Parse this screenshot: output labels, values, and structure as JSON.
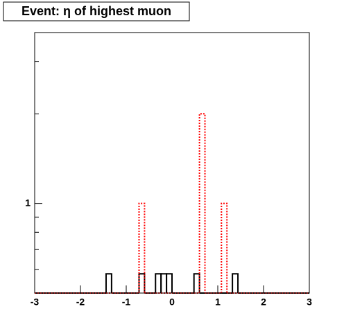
{
  "chart_data": {
    "type": "histogram",
    "title": "Event: η of highest muon",
    "bins": [
      -3,
      -2.88,
      -2.76,
      -2.64,
      -2.52,
      -2.4,
      -2.28,
      -2.16,
      -2.04,
      -1.92,
      -1.8,
      -1.68,
      -1.56,
      -1.44,
      -1.32,
      -1.2,
      -1.08,
      -0.96,
      -0.84,
      -0.72,
      -0.6,
      -0.48,
      -0.36,
      -0.24,
      -0.12,
      0,
      0.12,
      0.24,
      0.36,
      0.48,
      0.6,
      0.72,
      0.84,
      0.96,
      1.08,
      1.2,
      1.32,
      1.44,
      1.56,
      1.68,
      1.8,
      1.92,
      2.04,
      2.16,
      2.28,
      2.4,
      2.52,
      2.64,
      2.76,
      2.88,
      3
    ],
    "series": [
      {
        "color": "#000000",
        "linestyle": "solid",
        "values": [
          0,
          0,
          0,
          0,
          0,
          0,
          0,
          0,
          0,
          0,
          0,
          0,
          0,
          0.58,
          0,
          0,
          0,
          0,
          0,
          0.58,
          0,
          0,
          0.58,
          0.58,
          0.58,
          0,
          0,
          0,
          0,
          0.58,
          0,
          0,
          0,
          0,
          0,
          0,
          0.58,
          0,
          0,
          0,
          0,
          0,
          0,
          0,
          0,
          0,
          0,
          0,
          0,
          0
        ]
      },
      {
        "color": "#ff0000",
        "linestyle": "dotted",
        "values": [
          0,
          0,
          0,
          0,
          0,
          0,
          0,
          0,
          0,
          0,
          0,
          0,
          0,
          0,
          0,
          0,
          0,
          0,
          0,
          1,
          0,
          0,
          0,
          0,
          0,
          0,
          0,
          0,
          0,
          0,
          2,
          0,
          0,
          0,
          1,
          0,
          0,
          0,
          0,
          0,
          0,
          0,
          0,
          0,
          0,
          0,
          0,
          0,
          0,
          0
        ]
      }
    ],
    "xlim": [
      -3,
      3
    ],
    "xticks": [
      -3,
      -2,
      -1,
      0,
      1,
      2,
      3
    ],
    "ylim": [
      0.5,
      3.75
    ],
    "ylog": true,
    "yticks": [
      1
    ],
    "yminor_ticks": [
      0.6,
      0.7,
      0.8,
      0.9,
      2,
      3
    ]
  }
}
